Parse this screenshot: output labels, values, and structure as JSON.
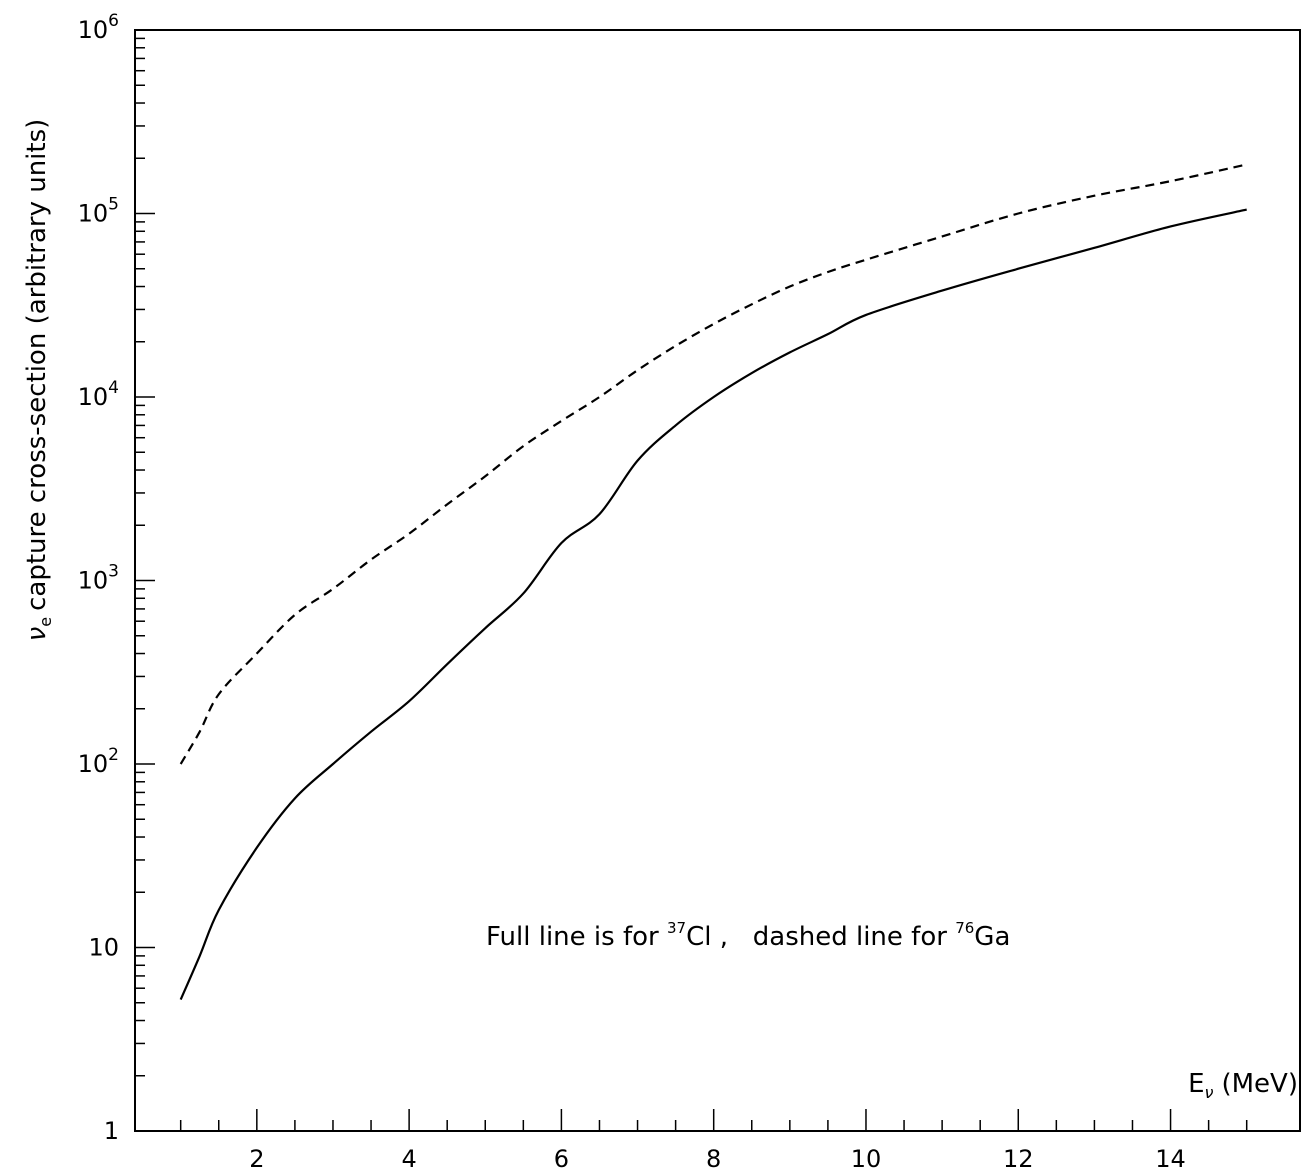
{
  "chart_data": {
    "type": "line",
    "xlabel": {
      "main": "E",
      "sub": "ν",
      "unit": "(MeV)"
    },
    "ylabel": {
      "symbol": "ν",
      "sub": "e",
      "text": "capture cross-section (arbitrary units)"
    },
    "xlim": [
      0.4,
      15.7
    ],
    "ylim": [
      1,
      1000000
    ],
    "yscale": "log",
    "grid": false,
    "x_tick_labels": [
      "2",
      "4",
      "6",
      "8",
      "10",
      "12",
      "14"
    ],
    "y_tick_labels": [
      {
        "value": 1,
        "base": "1",
        "exp": ""
      },
      {
        "value": 10,
        "base": "10",
        "exp": ""
      },
      {
        "value": 100,
        "base": "10",
        "exp": "2"
      },
      {
        "value": 1000,
        "base": "10",
        "exp": "3"
      },
      {
        "value": 10000,
        "base": "10",
        "exp": "4"
      },
      {
        "value": 100000,
        "base": "10",
        "exp": "5"
      },
      {
        "value": 1000000,
        "base": "10",
        "exp": "6"
      }
    ],
    "series": [
      {
        "style": "solid",
        "x": [
          1,
          1.25,
          1.5,
          2,
          2.5,
          3,
          3.5,
          4,
          4.5,
          5,
          5.5,
          6,
          6.5,
          7,
          7.5,
          8,
          8.5,
          9,
          9.5,
          10,
          11,
          12,
          13,
          14,
          15
        ],
        "y": [
          5.2,
          9,
          16,
          35,
          65,
          100,
          150,
          220,
          350,
          550,
          850,
          1600,
          2300,
          4500,
          7000,
          10000,
          13500,
          17500,
          22000,
          28000,
          38000,
          50000,
          65000,
          85000,
          105000
        ]
      },
      {
        "style": "dashed",
        "x": [
          1,
          1.25,
          1.5,
          2,
          2.5,
          3,
          3.5,
          4,
          4.5,
          5,
          5.5,
          6,
          6.5,
          7,
          7.5,
          8,
          8.5,
          9,
          9.5,
          10,
          11,
          12,
          13,
          14,
          15
        ],
        "y": [
          100,
          150,
          240,
          400,
          650,
          900,
          1300,
          1800,
          2600,
          3700,
          5400,
          7400,
          10000,
          14000,
          19000,
          25000,
          32000,
          40000,
          48000,
          56000,
          75000,
          100000,
          125000,
          150000,
          185000
        ]
      }
    ],
    "annotation": {
      "parts": [
        "Full line is for ",
        "37",
        "Cl ,   dashed line for ",
        "76",
        "Ga"
      ]
    }
  }
}
